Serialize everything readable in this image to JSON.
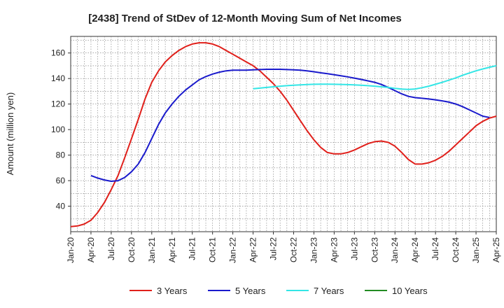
{
  "chart_data": {
    "type": "line",
    "title": "[2438]  Trend of StDev of 12-Month Moving Sum of Net Incomes",
    "xlabel": "",
    "ylabel": "Amount (million yen)",
    "ylim": [
      20,
      173
    ],
    "yticks": [
      40,
      60,
      80,
      100,
      120,
      140,
      160
    ],
    "x_range": [
      "2020-01",
      "2025-04"
    ],
    "xticks": [
      "Jan-20",
      "Apr-20",
      "Jul-20",
      "Oct-20",
      "Jan-21",
      "Apr-21",
      "Jul-21",
      "Oct-21",
      "Jan-22",
      "Apr-22",
      "Jul-22",
      "Oct-22",
      "Jan-23",
      "Apr-23",
      "Jul-23",
      "Oct-23",
      "Jan-24",
      "Apr-24",
      "Jul-24",
      "Oct-24",
      "Jan-25",
      "Apr-25"
    ],
    "grid": true,
    "legend_position": "bottom",
    "series": [
      {
        "name": "3 Years",
        "color": "#e0201b",
        "points": [
          [
            "2020-01",
            24
          ],
          [
            "2020-02",
            24.5
          ],
          [
            "2020-03",
            26
          ],
          [
            "2020-04",
            29
          ],
          [
            "2020-05",
            35
          ],
          [
            "2020-06",
            43
          ],
          [
            "2020-07",
            53
          ],
          [
            "2020-08",
            64
          ],
          [
            "2020-09",
            78
          ],
          [
            "2020-10",
            93
          ],
          [
            "2020-11",
            108
          ],
          [
            "2020-12",
            124
          ],
          [
            "2021-01",
            137
          ],
          [
            "2021-02",
            146
          ],
          [
            "2021-03",
            153
          ],
          [
            "2021-04",
            158
          ],
          [
            "2021-05",
            162
          ],
          [
            "2021-06",
            165
          ],
          [
            "2021-07",
            167
          ],
          [
            "2021-08",
            168
          ],
          [
            "2021-09",
            168
          ],
          [
            "2021-10",
            167
          ],
          [
            "2021-11",
            165
          ],
          [
            "2021-12",
            162
          ],
          [
            "2022-01",
            159
          ],
          [
            "2022-02",
            156
          ],
          [
            "2022-03",
            153
          ],
          [
            "2022-04",
            150
          ],
          [
            "2022-05",
            146
          ],
          [
            "2022-06",
            141
          ],
          [
            "2022-07",
            136
          ],
          [
            "2022-08",
            130
          ],
          [
            "2022-09",
            123
          ],
          [
            "2022-10",
            115
          ],
          [
            "2022-11",
            107
          ],
          [
            "2022-12",
            99
          ],
          [
            "2023-01",
            92
          ],
          [
            "2023-02",
            86
          ],
          [
            "2023-03",
            82
          ],
          [
            "2023-04",
            81
          ],
          [
            "2023-05",
            81
          ],
          [
            "2023-06",
            82
          ],
          [
            "2023-07",
            84
          ],
          [
            "2023-08",
            86.5
          ],
          [
            "2023-09",
            89
          ],
          [
            "2023-10",
            90.5
          ],
          [
            "2023-11",
            91
          ],
          [
            "2023-12",
            90
          ],
          [
            "2024-01",
            87
          ],
          [
            "2024-02",
            82
          ],
          [
            "2024-03",
            76.5
          ],
          [
            "2024-04",
            73
          ],
          [
            "2024-05",
            73
          ],
          [
            "2024-06",
            74
          ],
          [
            "2024-07",
            76
          ],
          [
            "2024-08",
            79
          ],
          [
            "2024-09",
            83
          ],
          [
            "2024-10",
            88
          ],
          [
            "2024-11",
            93
          ],
          [
            "2024-12",
            98
          ],
          [
            "2025-01",
            103
          ],
          [
            "2025-02",
            106.5
          ],
          [
            "2025-03",
            109
          ],
          [
            "2025-04",
            110.5
          ]
        ]
      },
      {
        "name": "5 Years",
        "color": "#1a1acc",
        "points": [
          [
            "2020-04",
            64
          ],
          [
            "2020-05",
            62
          ],
          [
            "2020-06",
            60.5
          ],
          [
            "2020-07",
            59.5
          ],
          [
            "2020-08",
            60
          ],
          [
            "2020-09",
            62.5
          ],
          [
            "2020-10",
            67
          ],
          [
            "2020-11",
            73
          ],
          [
            "2020-12",
            82
          ],
          [
            "2021-01",
            93
          ],
          [
            "2021-02",
            104
          ],
          [
            "2021-03",
            113
          ],
          [
            "2021-04",
            120
          ],
          [
            "2021-05",
            126
          ],
          [
            "2021-06",
            131
          ],
          [
            "2021-07",
            135
          ],
          [
            "2021-08",
            139
          ],
          [
            "2021-09",
            141.5
          ],
          [
            "2021-10",
            143.5
          ],
          [
            "2021-11",
            145
          ],
          [
            "2021-12",
            146
          ],
          [
            "2022-01",
            146.5
          ],
          [
            "2022-02",
            146.5
          ],
          [
            "2022-03",
            146.5
          ],
          [
            "2022-04",
            146.8
          ],
          [
            "2022-05",
            147
          ],
          [
            "2022-06",
            147.2
          ],
          [
            "2022-07",
            147.2
          ],
          [
            "2022-08",
            147.2
          ],
          [
            "2022-09",
            147
          ],
          [
            "2022-10",
            146.8
          ],
          [
            "2022-11",
            146.5
          ],
          [
            "2022-12",
            146
          ],
          [
            "2023-01",
            145.3
          ],
          [
            "2023-02",
            144.5
          ],
          [
            "2023-03",
            143.8
          ],
          [
            "2023-04",
            143
          ],
          [
            "2023-05",
            142.2
          ],
          [
            "2023-06",
            141.3
          ],
          [
            "2023-07",
            140.3
          ],
          [
            "2023-08",
            139.3
          ],
          [
            "2023-09",
            138.2
          ],
          [
            "2023-10",
            137
          ],
          [
            "2023-11",
            135.3
          ],
          [
            "2023-12",
            133
          ],
          [
            "2024-01",
            130.5
          ],
          [
            "2024-02",
            128
          ],
          [
            "2024-03",
            126
          ],
          [
            "2024-04",
            125
          ],
          [
            "2024-05",
            124.5
          ],
          [
            "2024-06",
            124
          ],
          [
            "2024-07",
            123.3
          ],
          [
            "2024-08",
            122.5
          ],
          [
            "2024-09",
            121.5
          ],
          [
            "2024-10",
            120
          ],
          [
            "2024-11",
            118
          ],
          [
            "2024-12",
            115.5
          ],
          [
            "2025-01",
            113
          ],
          [
            "2025-02",
            110.5
          ],
          [
            "2025-03",
            109.5
          ]
        ]
      },
      {
        "name": "7 Years",
        "color": "#33e6e6",
        "points": [
          [
            "2022-04",
            132
          ],
          [
            "2022-05",
            132.5
          ],
          [
            "2022-06",
            133
          ],
          [
            "2022-07",
            133.5
          ],
          [
            "2022-08",
            134
          ],
          [
            "2022-09",
            134.4
          ],
          [
            "2022-10",
            134.7
          ],
          [
            "2022-11",
            135
          ],
          [
            "2022-12",
            135.3
          ],
          [
            "2023-01",
            135.5
          ],
          [
            "2023-02",
            135.6
          ],
          [
            "2023-03",
            135.6
          ],
          [
            "2023-04",
            135.5
          ],
          [
            "2023-05",
            135.4
          ],
          [
            "2023-06",
            135.2
          ],
          [
            "2023-07",
            135
          ],
          [
            "2023-08",
            134.7
          ],
          [
            "2023-09",
            134.4
          ],
          [
            "2023-10",
            134
          ],
          [
            "2023-11",
            133.5
          ],
          [
            "2023-12",
            133
          ],
          [
            "2024-01",
            132.3
          ],
          [
            "2024-02",
            131.7
          ],
          [
            "2024-03",
            131.5
          ],
          [
            "2024-04",
            131.8
          ],
          [
            "2024-05",
            132.8
          ],
          [
            "2024-06",
            134
          ],
          [
            "2024-07",
            135.5
          ],
          [
            "2024-08",
            137
          ],
          [
            "2024-09",
            138.8
          ],
          [
            "2024-10",
            140.5
          ],
          [
            "2024-11",
            142.5
          ],
          [
            "2024-12",
            144.3
          ],
          [
            "2025-01",
            146
          ],
          [
            "2025-02",
            147.5
          ],
          [
            "2025-03",
            148.8
          ],
          [
            "2025-04",
            150
          ]
        ]
      },
      {
        "name": "10 Years",
        "color": "#228b22",
        "points": []
      }
    ]
  }
}
